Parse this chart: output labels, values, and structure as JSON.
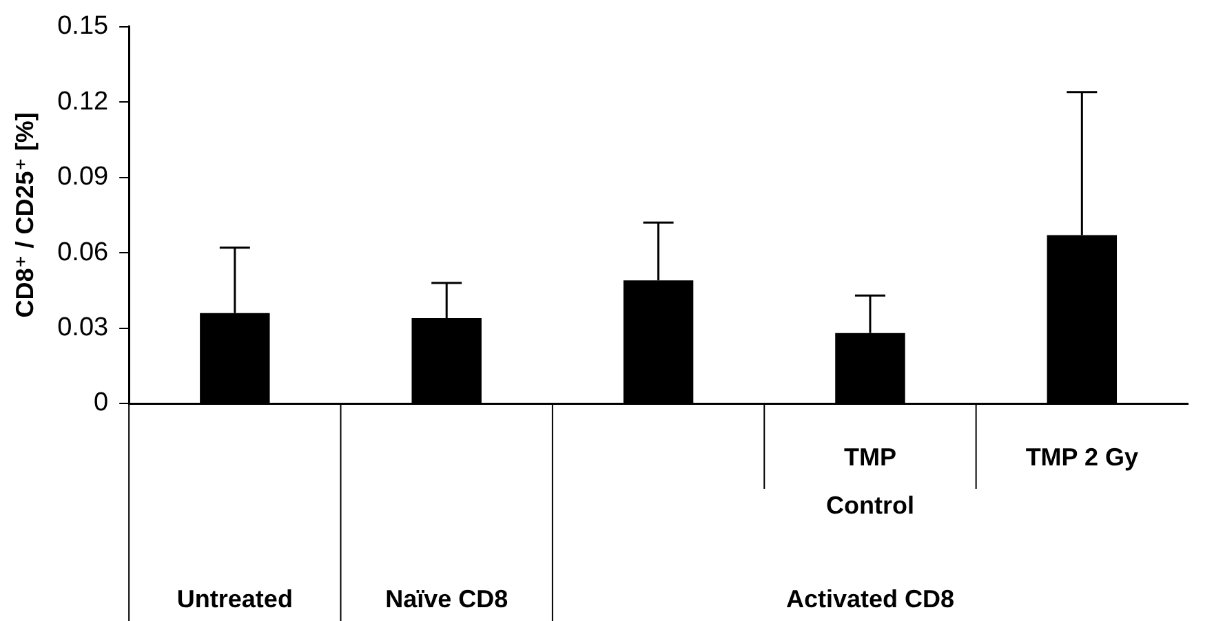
{
  "chart_data": {
    "type": "bar",
    "ylabel": "CD8⁺ / CD25⁺ [%]",
    "categories": [
      null,
      null,
      null,
      "TMP Control",
      "TMP 2 Gy"
    ],
    "values": [
      0.036,
      0.034,
      0.049,
      0.028,
      0.067
    ],
    "errors": [
      [
        0.036,
        0.062
      ],
      [
        0.034,
        0.048
      ],
      [
        0.049,
        0.072
      ],
      [
        0.028,
        0.043
      ],
      [
        0.067,
        0.124
      ]
    ],
    "color": "#000000",
    "annotations": [
      "Untreated",
      "Naïve CD8",
      "Activated CD8"
    ],
    "ylim": [
      0,
      0.15
    ],
    "yticks": [
      0,
      0.03,
      0.06,
      0.09,
      0.12,
      0.15
    ],
    "grid": false
  }
}
